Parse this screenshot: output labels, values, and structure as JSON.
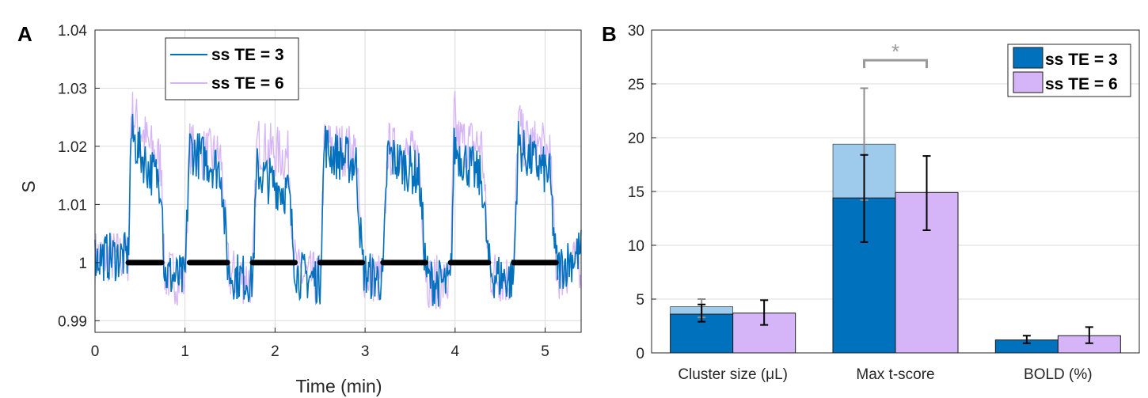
{
  "figure": {
    "panel_a_label": "A",
    "panel_b_label": "B"
  },
  "colors": {
    "blue": "#0072BD",
    "lilac": "#D6B4F8",
    "blue_light": "#9ECAEC",
    "sig_gray": "#9a9a9a"
  },
  "chart_data": [
    {
      "id": "A",
      "type": "line",
      "xlabel": "Time (min)",
      "ylabel": "S",
      "xlim": [
        0,
        5.4
      ],
      "ylim": [
        0.988,
        1.04
      ],
      "xticks": [
        "0",
        "1",
        "2",
        "3",
        "4",
        "5"
      ],
      "yticks": [
        "0.99",
        "1",
        "1.01",
        "1.02",
        "1.03",
        "1.04"
      ],
      "ytick_values": [
        0.99,
        1.0,
        1.01,
        1.02,
        1.03,
        1.04
      ],
      "grid": true,
      "legend_position": "top-left",
      "legend": [
        "ss TE = 3",
        "ss TE = 6"
      ],
      "series": [
        {
          "name": "ss TE = 3",
          "color": "#0072BD",
          "x": [
            0,
            0.37,
            0.4,
            0.6,
            0.74,
            0.77,
            1.0,
            1.05,
            1.1,
            1.4,
            1.47,
            1.5,
            1.75,
            1.8,
            1.85,
            2.15,
            2.22,
            2.25,
            2.5,
            2.55,
            2.6,
            2.9,
            2.97,
            3.0,
            3.2,
            3.25,
            3.3,
            3.6,
            3.67,
            3.7,
            3.95,
            3.99,
            4.03,
            4.3,
            4.37,
            4.4,
            4.65,
            4.7,
            4.75,
            5.05,
            5.12,
            5.15,
            5.4
          ],
          "mean": [
            1.001,
            1.001,
            1.022,
            1.016,
            1.014,
            0.998,
            0.997,
            1.02,
            1.019,
            1.016,
            1.0,
            0.998,
            0.997,
            1.016,
            1.015,
            1.012,
            1.0,
            0.998,
            0.997,
            1.021,
            1.019,
            1.017,
            1.0,
            0.998,
            0.997,
            1.019,
            1.018,
            1.015,
            1.0,
            0.997,
            0.996,
            1.02,
            1.019,
            1.014,
            1.0,
            0.998,
            0.997,
            1.021,
            1.019,
            1.015,
            1.0,
            0.999,
            1.002
          ]
        },
        {
          "name": "ss TE = 6",
          "color": "#D6B4F8",
          "x": [
            0,
            0.37,
            0.4,
            0.6,
            0.74,
            0.77,
            1.0,
            1.05,
            1.1,
            1.4,
            1.47,
            1.5,
            1.75,
            1.8,
            1.85,
            2.15,
            2.22,
            2.25,
            2.5,
            2.55,
            2.6,
            2.9,
            2.97,
            3.0,
            3.2,
            3.25,
            3.3,
            3.6,
            3.67,
            3.7,
            3.95,
            3.99,
            4.03,
            4.3,
            4.37,
            4.4,
            4.65,
            4.7,
            4.75,
            5.05,
            5.12,
            5.15,
            5.4
          ],
          "mean": [
            1.001,
            1.001,
            1.026,
            1.02,
            1.017,
            0.998,
            0.997,
            1.02,
            1.019,
            1.018,
            1.0,
            0.998,
            0.997,
            1.021,
            1.02,
            1.018,
            1.0,
            0.998,
            0.997,
            1.021,
            1.02,
            1.019,
            1.0,
            0.998,
            0.997,
            1.02,
            1.019,
            1.018,
            1.0,
            0.997,
            0.996,
            1.026,
            1.021,
            1.02,
            1.0,
            0.998,
            0.997,
            1.025,
            1.021,
            1.019,
            1.0,
            0.998,
            1.0
          ]
        },
        {
          "name": "baseline blocks",
          "color": "#000000",
          "segments": [
            [
              0.37,
              0.74
            ],
            [
              1.05,
              1.47
            ],
            [
              1.75,
              2.22
            ],
            [
              2.5,
              2.97
            ],
            [
              3.2,
              3.67
            ],
            [
              3.95,
              4.37
            ],
            [
              4.65,
              5.12
            ]
          ],
          "value": 1.0
        }
      ]
    },
    {
      "id": "B",
      "type": "bar",
      "categories": [
        "Cluster size (μL)",
        "Max t-score",
        "BOLD (%)"
      ],
      "ylim": [
        0,
        30
      ],
      "yticks": [
        "0",
        "5",
        "10",
        "15",
        "20",
        "25",
        "30"
      ],
      "ytick_values": [
        0,
        5,
        10,
        15,
        20,
        25,
        30
      ],
      "grid": true,
      "legend_position": "top-right",
      "legend": [
        "ss TE = 3",
        "ss TE = 6"
      ],
      "series": [
        {
          "name": "ss TE = 3",
          "color": "#0072BD",
          "values": [
            3.6,
            14.4,
            1.2
          ],
          "err_low": [
            2.9,
            10.3,
            0.9
          ],
          "err_high": [
            4.5,
            18.4,
            1.6
          ]
        },
        {
          "name": "ss TE = 6",
          "color": "#D6B4F8",
          "values": [
            3.7,
            14.9,
            1.6
          ],
          "err_low": [
            2.6,
            11.4,
            0.9
          ],
          "err_high": [
            4.9,
            18.3,
            2.4
          ]
        },
        {
          "name": "ss TE = 3 (overlay)",
          "color": "#9ECAEC",
          "values": [
            4.3,
            19.4,
            1.2
          ],
          "err_low": [
            3.3,
            14.2,
            0.9
          ],
          "err_high": [
            5.0,
            24.6,
            1.6
          ]
        }
      ],
      "significance": {
        "label": "*",
        "between": [
          "ss TE = 3",
          "ss TE = 6"
        ],
        "category": "Max t-score",
        "bracket_y": 27.2
      }
    }
  ]
}
